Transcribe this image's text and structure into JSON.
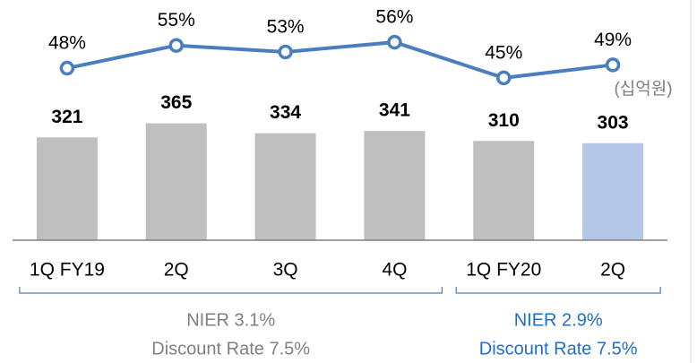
{
  "chart_data": {
    "type": "bar-line",
    "categories": [
      "1Q FY19",
      "2Q",
      "3Q",
      "4Q",
      "1Q FY20",
      "2Q"
    ],
    "unit_label": "(십억원)",
    "series": [
      {
        "type": "bar",
        "values": [
          321,
          365,
          334,
          341,
          310,
          303
        ],
        "colors": [
          "#bfbfbf",
          "#bfbfbf",
          "#bfbfbf",
          "#bfbfbf",
          "#bfbfbf",
          "#b4c7e7"
        ]
      },
      {
        "type": "line",
        "axis": "y2",
        "color": "#4a7ebf",
        "values": [
          48,
          55,
          53,
          56,
          45,
          49
        ],
        "value_labels": [
          "48%",
          "55%",
          "53%",
          "56%",
          "45%",
          "49%"
        ]
      }
    ],
    "ylim": [
      0,
      750
    ],
    "y2lim": [
      -5,
      69
    ],
    "groups": [
      {
        "labels": [
          "NIER 3.1%",
          "Discount Rate 7.5%"
        ],
        "color": "#808080"
      },
      {
        "labels": [
          "NIER 2.9%",
          "Discount Rate 7.5%"
        ],
        "color": "#1f6fc5"
      }
    ]
  }
}
